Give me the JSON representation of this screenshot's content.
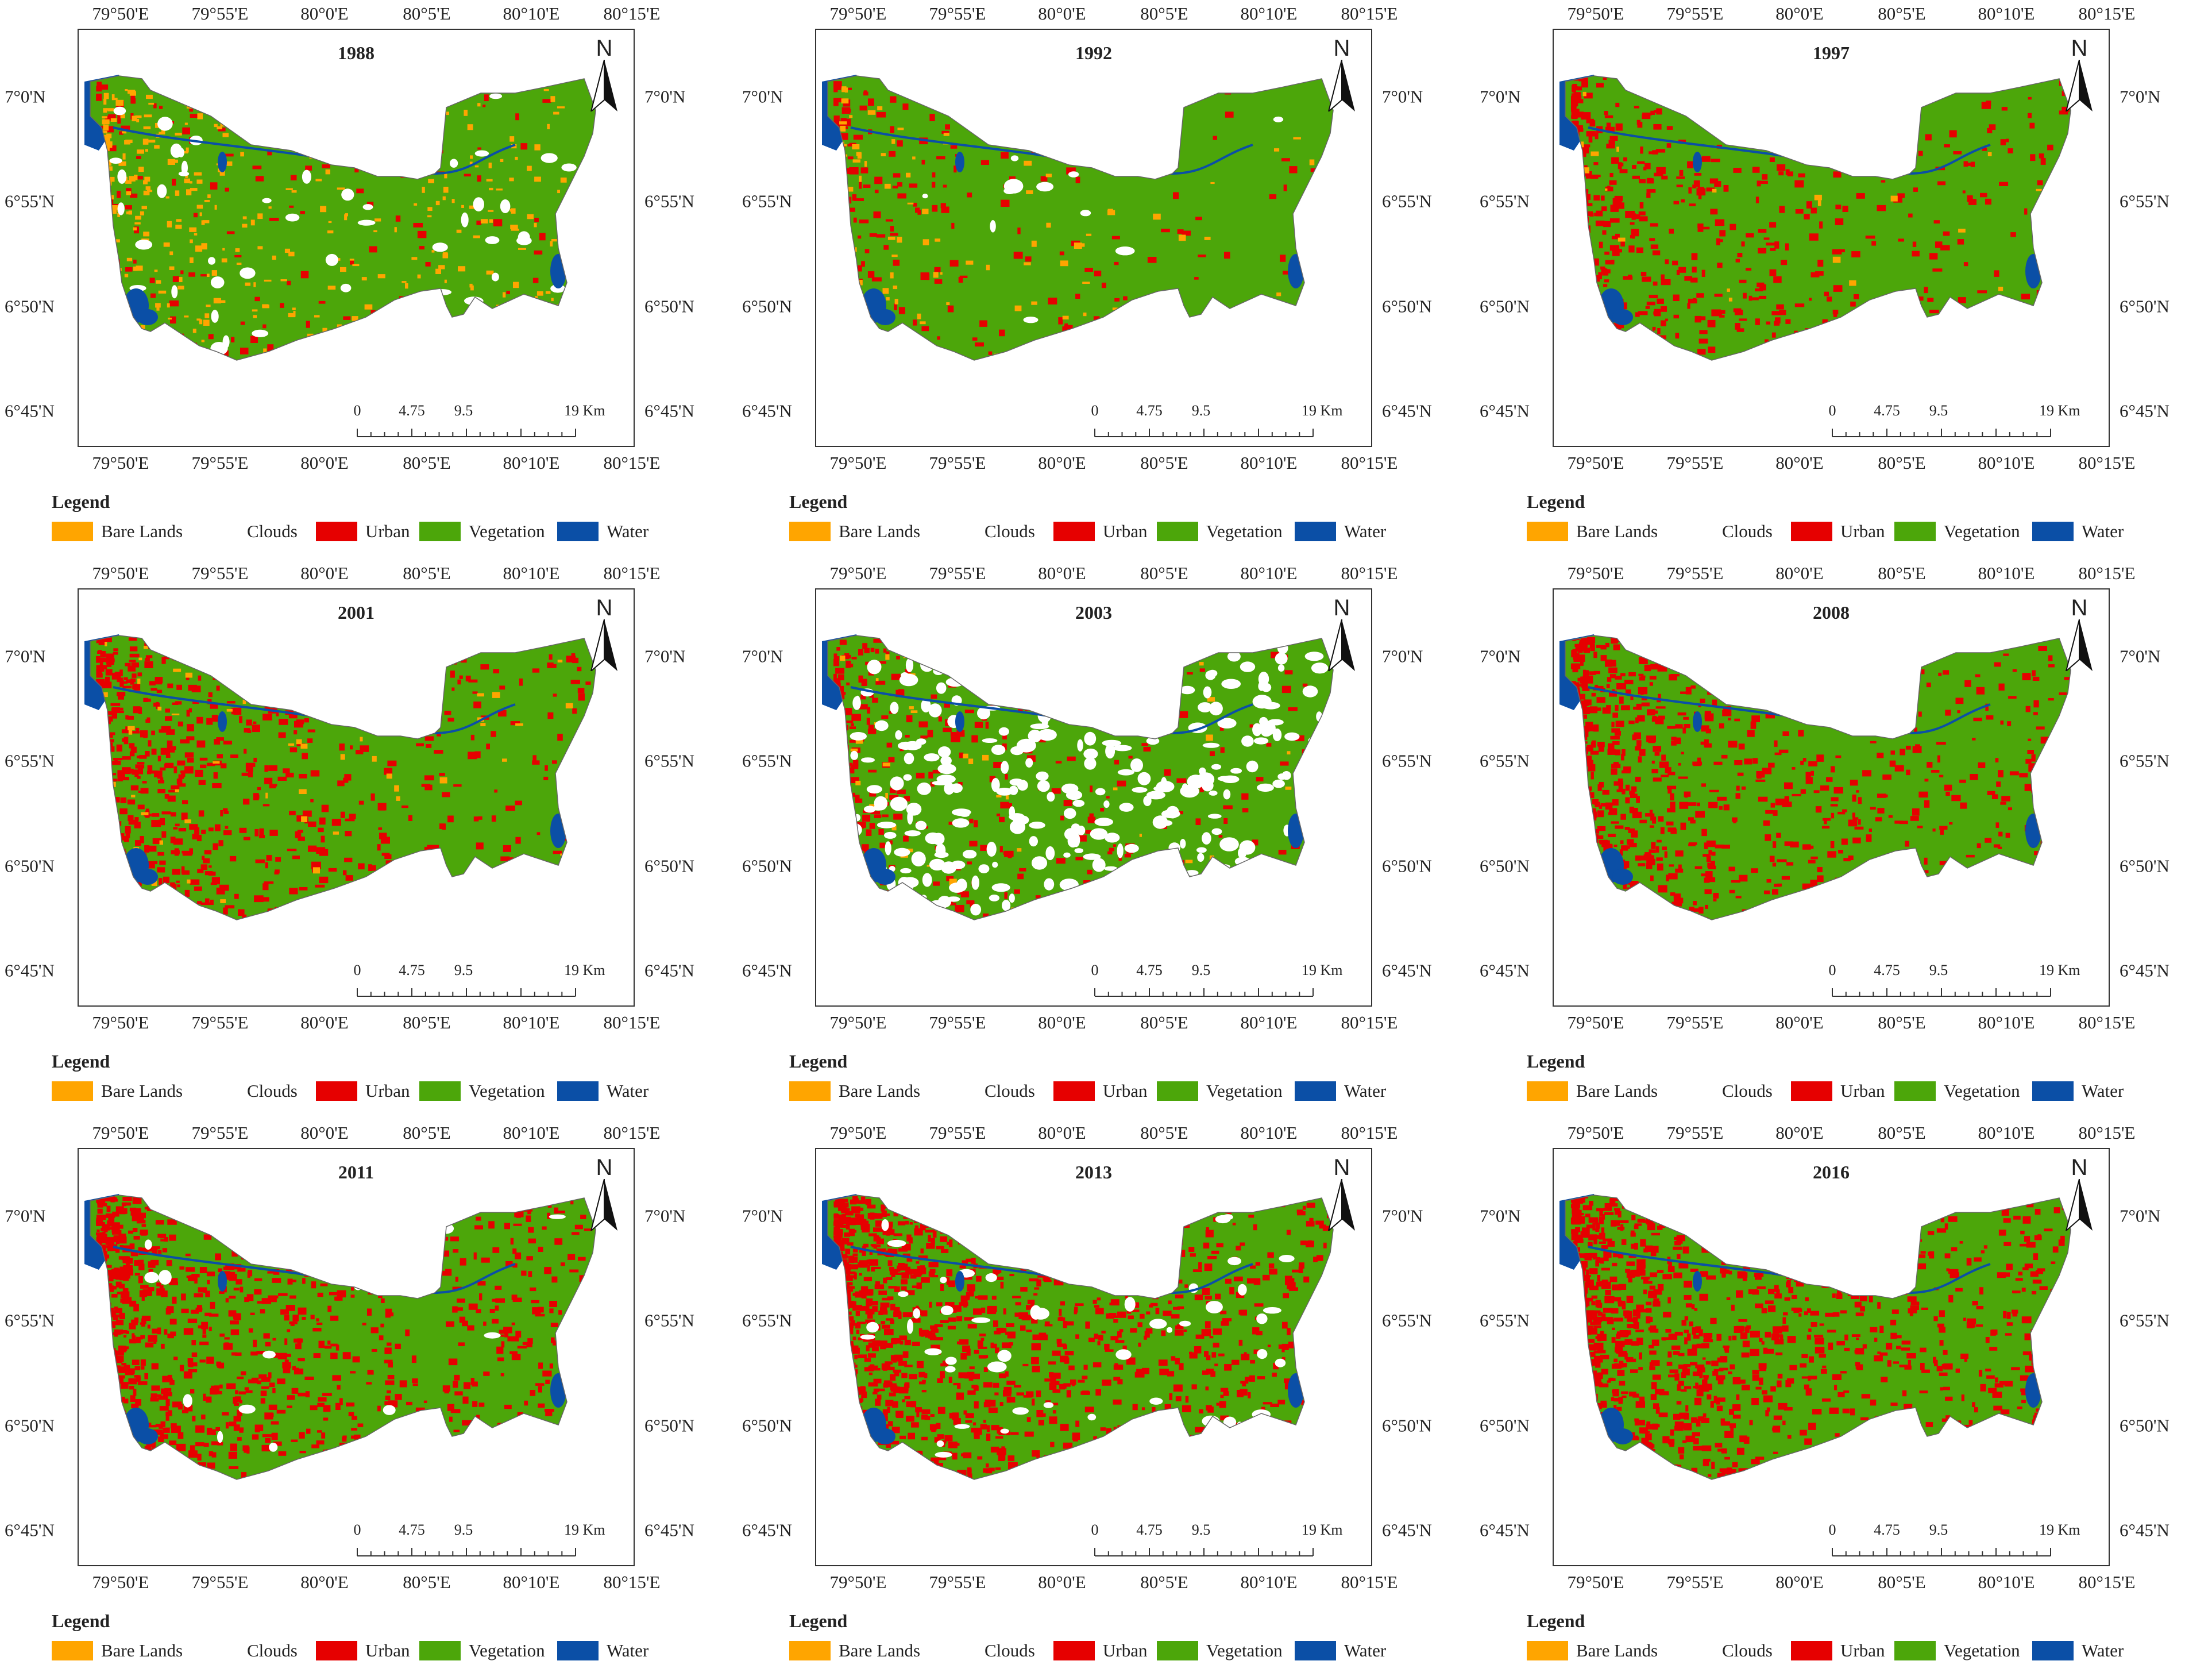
{
  "colors": {
    "bare_lands": "#FFA500",
    "clouds": "#FFFFFF",
    "urban": "#E60000",
    "vegetation": "#4CA60A",
    "water": "#0B4FA6"
  },
  "axes": {
    "longitude_labels": [
      "79°50'E",
      "79°55'E",
      "80°0'E",
      "80°5'E",
      "80°10'E",
      "80°15'E"
    ],
    "latitude_labels": [
      "7°0'N",
      "6°55'N",
      "6°50'N",
      "6°45'N"
    ]
  },
  "north_arrow": {
    "letter": "N",
    "icon": "north-arrow-icon"
  },
  "scale_bar": {
    "labels": [
      "0",
      "4.75",
      "9.5"
    ],
    "unit_label": "19 Km"
  },
  "legend": {
    "title": "Legend",
    "items": [
      {
        "label": "Bare Lands",
        "color_key": "bare_lands",
        "swatch": true
      },
      {
        "label": "Clouds",
        "color_key": "clouds",
        "swatch": false
      },
      {
        "label": "Urban",
        "color_key": "urban",
        "swatch": true
      },
      {
        "label": "Vegetation",
        "color_key": "vegetation",
        "swatch": true
      },
      {
        "label": "Water",
        "color_key": "water",
        "swatch": true
      }
    ]
  },
  "panels": [
    {
      "year": "1988",
      "urban_share": 0.08,
      "bare_share": 0.16,
      "cloud_share": 0.05
    },
    {
      "year": "1992",
      "urban_share": 0.1,
      "bare_share": 0.04,
      "cloud_share": 0.01
    },
    {
      "year": "1997",
      "urban_share": 0.28,
      "bare_share": 0.01,
      "cloud_share": 0.0
    },
    {
      "year": "2001",
      "urban_share": 0.34,
      "bare_share": 0.03,
      "cloud_share": 0.0
    },
    {
      "year": "2003",
      "urban_share": 0.18,
      "bare_share": 0.02,
      "cloud_share": 0.22
    },
    {
      "year": "2008",
      "urban_share": 0.4,
      "bare_share": 0.0,
      "cloud_share": 0.0
    },
    {
      "year": "2011",
      "urban_share": 0.5,
      "bare_share": 0.0,
      "cloud_share": 0.01
    },
    {
      "year": "2013",
      "urban_share": 0.58,
      "bare_share": 0.0,
      "cloud_share": 0.04
    },
    {
      "year": "2016",
      "urban_share": 0.56,
      "bare_share": 0.0,
      "cloud_share": 0.0
    }
  ]
}
